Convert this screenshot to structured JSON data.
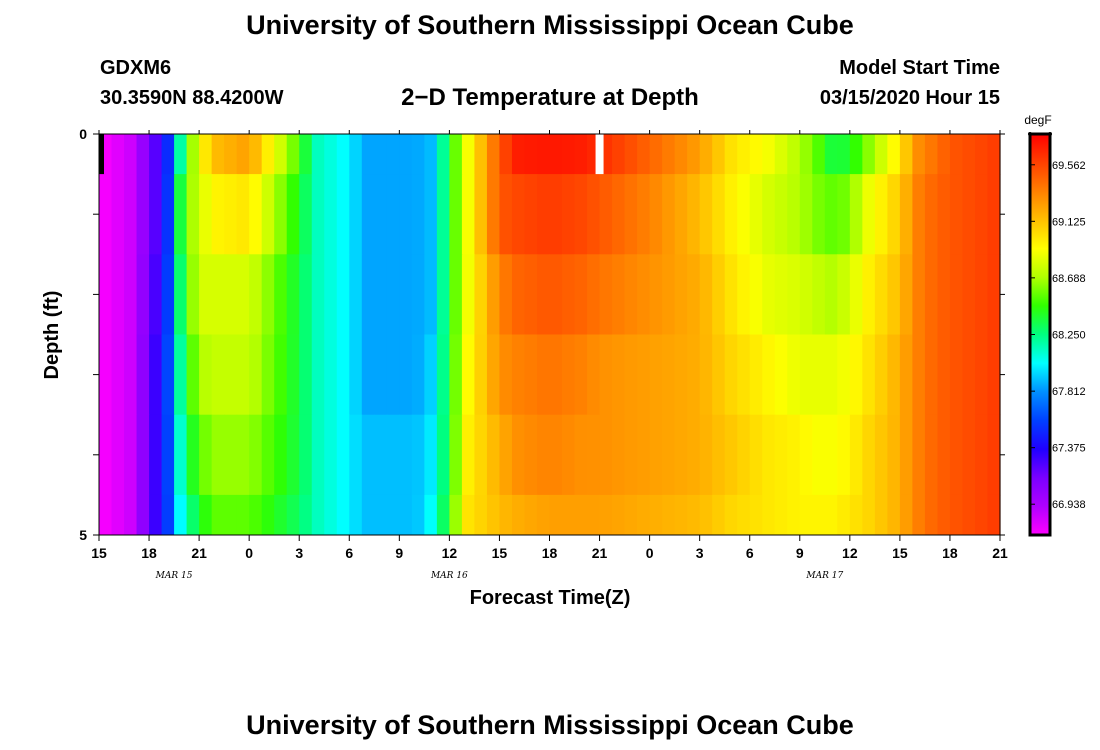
{
  "title_top": "University of Southern Mississippi Ocean Cube",
  "title_bottom": "University of Southern Mississippi Ocean Cube",
  "station": "GDXM6",
  "location": "30.3590N 88.4200W",
  "model_start_label": "Model Start Time",
  "model_start_value": "03/15/2020 Hour 15",
  "colors": {
    "scale": [
      "#ff00ff",
      "#b000ff",
      "#7a00ff",
      "#2000ff",
      "#0040ff",
      "#0090ff",
      "#00ffff",
      "#00ff80",
      "#30ff00",
      "#b0ff00",
      "#ffff00",
      "#ffc000",
      "#ff8000",
      "#ff4000",
      "#ff0000"
    ],
    "missing": "#ffffff"
  },
  "chart_data": {
    "type": "heatmap",
    "title": "2−D Temperature at Depth",
    "xlabel": "Forecast Time(Z)",
    "ylabel": "Depth (ft)",
    "units": "degF",
    "vmin": 66.7,
    "vmax": 69.8,
    "ylim": [
      0,
      5
    ],
    "y_ticks": [
      "0",
      "5"
    ],
    "x_tick_labels": [
      "15",
      "18",
      "21",
      "0",
      "3",
      "6",
      "9",
      "12",
      "15",
      "18",
      "21",
      "0",
      "3",
      "6",
      "9",
      "12",
      "15",
      "18",
      "21"
    ],
    "x_tick_hours": [
      0,
      3,
      6,
      9,
      12,
      15,
      18,
      21,
      24,
      27,
      30,
      33,
      36,
      39,
      42,
      45,
      48,
      51,
      54
    ],
    "date_labels": [
      {
        "text": "MAR  15",
        "hour": 4.5
      },
      {
        "text": "MAR  16",
        "hour": 21
      },
      {
        "text": "MAR  17",
        "hour": 43.5
      }
    ],
    "colorbar_ticks": [
      "66.938",
      "67.375",
      "67.812",
      "68.250",
      "68.688",
      "69.125",
      "69.562"
    ],
    "hours": [
      0,
      2,
      4,
      5,
      6,
      7,
      9,
      12,
      13,
      15,
      16,
      18,
      19,
      20,
      21,
      22,
      24,
      25,
      27,
      29,
      30,
      33,
      36,
      38,
      40,
      42,
      43,
      44,
      45,
      46,
      48,
      49,
      50,
      51,
      54
    ],
    "depth_bins": [
      {
        "depth": "0-0.5",
        "values": [
          66.7,
          66.85,
          67.4,
          68.3,
          68.9,
          69.15,
          69.25,
          68.5,
          68.15,
          68.0,
          67.85,
          67.85,
          67.85,
          67.9,
          68.4,
          68.85,
          69.5,
          69.7,
          69.72,
          69.7,
          69.65,
          69.45,
          69.25,
          69.0,
          68.9,
          68.7,
          68.55,
          68.35,
          68.4,
          68.6,
          69.0,
          69.3,
          69.4,
          69.5,
          69.6
        ]
      },
      {
        "depth": "0.5-1.5",
        "values": [
          66.7,
          66.85,
          67.4,
          68.5,
          68.8,
          68.95,
          69.0,
          68.4,
          68.15,
          68.0,
          67.85,
          67.85,
          67.85,
          67.9,
          68.4,
          68.85,
          69.5,
          69.55,
          69.6,
          69.55,
          69.5,
          69.35,
          69.15,
          68.95,
          68.8,
          68.7,
          68.6,
          68.55,
          68.6,
          68.85,
          69.1,
          69.35,
          69.45,
          69.5,
          69.6
        ]
      },
      {
        "depth": "1.5-2.5",
        "values": [
          66.7,
          66.85,
          67.45,
          68.4,
          68.8,
          68.8,
          68.8,
          68.35,
          68.15,
          68.0,
          67.85,
          67.85,
          67.85,
          67.9,
          68.4,
          68.85,
          69.35,
          69.45,
          69.5,
          69.45,
          69.4,
          69.3,
          69.2,
          69.0,
          68.85,
          68.8,
          68.75,
          68.7,
          68.8,
          68.95,
          69.15,
          69.35,
          69.45,
          69.5,
          69.6
        ]
      },
      {
        "depth": "2.5-3.5",
        "values": [
          66.7,
          66.85,
          67.5,
          68.3,
          68.7,
          68.75,
          68.75,
          68.35,
          68.15,
          68.0,
          67.85,
          67.85,
          67.85,
          67.95,
          68.4,
          68.9,
          69.3,
          69.35,
          69.4,
          69.35,
          69.3,
          69.25,
          69.2,
          69.05,
          68.95,
          68.85,
          68.85,
          68.85,
          68.9,
          69.0,
          69.2,
          69.35,
          69.45,
          69.5,
          69.6
        ]
      },
      {
        "depth": "3.5-4.5",
        "values": [
          66.7,
          66.85,
          67.5,
          68.2,
          68.55,
          68.65,
          68.65,
          68.35,
          68.15,
          68.0,
          67.9,
          67.9,
          67.9,
          68.0,
          68.4,
          68.95,
          69.2,
          69.3,
          69.35,
          69.3,
          69.3,
          69.25,
          69.2,
          69.1,
          69.0,
          68.95,
          68.9,
          68.9,
          68.95,
          69.05,
          69.2,
          69.35,
          69.45,
          69.5,
          69.6
        ]
      },
      {
        "depth": "4.5-5",
        "values": [
          66.7,
          66.85,
          67.5,
          68.1,
          68.4,
          68.55,
          68.55,
          68.3,
          68.15,
          68.0,
          67.9,
          67.9,
          67.9,
          68.05,
          68.45,
          69.0,
          69.15,
          69.2,
          69.25,
          69.25,
          69.25,
          69.2,
          69.15,
          69.05,
          69.0,
          68.95,
          68.95,
          68.95,
          69.0,
          69.05,
          69.2,
          69.35,
          69.45,
          69.5,
          69.6
        ]
      }
    ],
    "missing": [
      {
        "depth": "0-0.5",
        "hour": 30
      }
    ]
  }
}
